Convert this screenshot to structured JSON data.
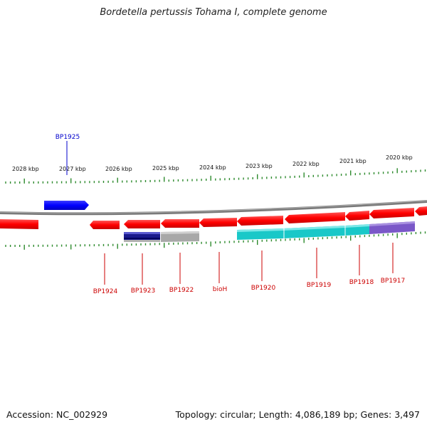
{
  "title": "Bordetella pertussis Tohama I, complete genome",
  "footer": {
    "accession": "Accession: NC_002929",
    "topology": "Topology: circular; Length: 4,086,189 bp; Genes: 3,497"
  },
  "colors": {
    "forward_gene": "#0000ff",
    "reverse_gene": "#ff0000",
    "ticks": "#2e8b2e",
    "backbone": "#808080",
    "label_forward": "#0000cc",
    "label_reverse": "#cc0000"
  },
  "scale": {
    "unit": "kbp",
    "labels": [
      "2028 kbp",
      "2027 kbp",
      "2026 kbp",
      "2025 kbp",
      "2024 kbp",
      "2023 kbp",
      "2022 kbp",
      "2021 kbp",
      "2020 kbp"
    ]
  },
  "genes": [
    {
      "id": "partial-left",
      "label": "",
      "strand": "reverse"
    },
    {
      "id": "BP1925",
      "label": "BP1925",
      "strand": "forward"
    },
    {
      "id": "BP1924",
      "label": "BP1924",
      "strand": "reverse"
    },
    {
      "id": "BP1923",
      "label": "BP1923",
      "strand": "reverse"
    },
    {
      "id": "BP1922",
      "label": "BP1922",
      "strand": "reverse"
    },
    {
      "id": "bioH",
      "label": "bioH",
      "strand": "reverse"
    },
    {
      "id": "BP1920",
      "label": "BP1920",
      "strand": "reverse"
    },
    {
      "id": "BP1919",
      "label": "BP1919",
      "strand": "reverse"
    },
    {
      "id": "BP1918",
      "label": "BP1918",
      "strand": "reverse"
    },
    {
      "id": "BP1917",
      "label": "BP1917",
      "strand": "reverse"
    },
    {
      "id": "partial-right",
      "label": "",
      "strand": "reverse"
    }
  ],
  "features": [
    {
      "id": "feat-BP1923",
      "color": "#1a1a8c"
    },
    {
      "id": "feat-BP1922",
      "color": "#a8a8a8"
    },
    {
      "id": "feat-cyan",
      "color": "#19c8c8"
    },
    {
      "id": "feat-purple",
      "color": "#7a58c8"
    }
  ]
}
